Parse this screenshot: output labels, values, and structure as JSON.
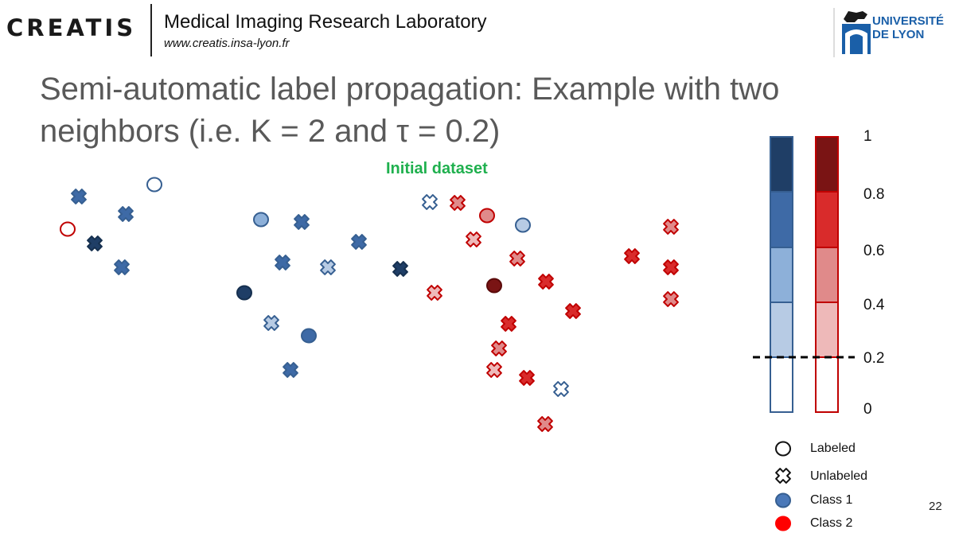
{
  "header": {
    "logo_text": "CREATIS",
    "lab_name": "Medical Imaging Research Laboratory",
    "lab_url": "www.creatis.insa-lyon.fr",
    "university_logo_text": "UNIVERSITÉ DE LYON"
  },
  "slide": {
    "title": "Semi-automatic label propagation: Example with two neighbors (i.e. K = 2 and τ = 0.2)",
    "dataset_label": "Initial dataset",
    "page_number": "22"
  },
  "colors": {
    "blue_levels": [
      "#ffffff",
      "#b7cbe4",
      "#8db0d9",
      "#3e6aa6",
      "#1f3e66"
    ],
    "red_levels": [
      "#ffffff",
      "#eeb9b9",
      "#e08a8a",
      "#d92b2b",
      "#7a1414"
    ],
    "blue_edge": "#365f91",
    "red_edge": "#c00000",
    "dataset_label": "#1fb04e"
  },
  "colorbar": {
    "ticks": [
      "1",
      "0.8",
      "0.6",
      "0.4",
      "0.2",
      "0"
    ],
    "threshold": "0.2"
  },
  "legend": {
    "labeled": "Labeled",
    "unlabeled": "Unlabeled",
    "class1": "Class 1",
    "class2": "Class 2"
  },
  "points": [
    {
      "shape": "o",
      "cls": 1,
      "level": 0
    },
    {
      "shape": "o",
      "cls": 2,
      "level": 0
    },
    {
      "shape": "x",
      "cls": 1,
      "level": 3
    },
    {
      "shape": "x",
      "cls": 1,
      "level": 3
    },
    {
      "shape": "x",
      "cls": 1,
      "level": 4
    },
    {
      "shape": "x",
      "cls": 1,
      "level": 3
    },
    {
      "shape": "o",
      "cls": 1,
      "level": 2
    },
    {
      "shape": "x",
      "cls": 1,
      "level": 3
    },
    {
      "shape": "x",
      "cls": 1,
      "level": 3
    },
    {
      "shape": "x",
      "cls": 1,
      "level": 3
    },
    {
      "shape": "x",
      "cls": 1,
      "level": 1
    },
    {
      "shape": "o",
      "cls": 1,
      "level": 4
    },
    {
      "shape": "x",
      "cls": 1,
      "level": 1
    },
    {
      "shape": "o",
      "cls": 1,
      "level": 3
    },
    {
      "shape": "x",
      "cls": 1,
      "level": 3
    },
    {
      "shape": "x",
      "cls": 1,
      "level": 4
    },
    {
      "shape": "x",
      "cls": 1,
      "level": 0
    },
    {
      "shape": "x",
      "cls": 2,
      "level": 2
    },
    {
      "shape": "o",
      "cls": 2,
      "level": 2
    },
    {
      "shape": "o",
      "cls": 1,
      "level": 1
    },
    {
      "shape": "x",
      "cls": 2,
      "level": 1
    },
    {
      "shape": "x",
      "cls": 2,
      "level": 2
    },
    {
      "shape": "x",
      "cls": 2,
      "level": 1
    },
    {
      "shape": "o",
      "cls": 2,
      "level": 4
    },
    {
      "shape": "x",
      "cls": 2,
      "level": 3
    },
    {
      "shape": "x",
      "cls": 2,
      "level": 3
    },
    {
      "shape": "x",
      "cls": 2,
      "level": 3
    },
    {
      "shape": "x",
      "cls": 2,
      "level": 2
    },
    {
      "shape": "x",
      "cls": 2,
      "level": 1
    },
    {
      "shape": "x",
      "cls": 2,
      "level": 3
    },
    {
      "shape": "x",
      "cls": 1,
      "level": 0
    },
    {
      "shape": "x",
      "cls": 2,
      "level": 2
    },
    {
      "shape": "x",
      "cls": 2,
      "level": 3
    },
    {
      "shape": "x",
      "cls": 2,
      "level": 2
    },
    {
      "shape": "x",
      "cls": 2,
      "level": 3
    },
    {
      "shape": "x",
      "cls": 2,
      "level": 2
    }
  ]
}
